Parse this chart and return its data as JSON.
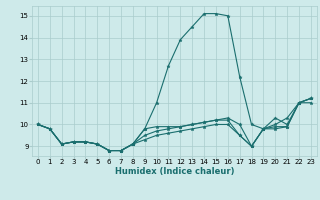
{
  "xlabel": "Humidex (Indice chaleur)",
  "bg_color": "#ceeaea",
  "grid_color": "#aacccc",
  "line_color": "#1a6e6e",
  "x_values": [
    0,
    1,
    2,
    3,
    4,
    5,
    6,
    7,
    8,
    9,
    10,
    11,
    12,
    13,
    14,
    15,
    16,
    17,
    18,
    19,
    20,
    21,
    22,
    23
  ],
  "series": [
    [
      10.0,
      9.8,
      9.1,
      9.2,
      9.2,
      9.1,
      8.8,
      8.8,
      9.1,
      9.8,
      11.0,
      12.7,
      13.9,
      14.5,
      15.1,
      15.1,
      15.0,
      12.2,
      10.0,
      9.8,
      10.3,
      10.0,
      11.0,
      11.2
    ],
    [
      10.0,
      9.8,
      9.1,
      9.2,
      9.2,
      9.1,
      8.8,
      8.8,
      9.1,
      9.8,
      9.9,
      9.9,
      9.9,
      10.0,
      10.1,
      10.2,
      10.3,
      10.0,
      9.0,
      9.8,
      10.0,
      10.3,
      11.0,
      11.2
    ],
    [
      10.0,
      9.8,
      9.1,
      9.2,
      9.2,
      9.1,
      8.8,
      8.8,
      9.1,
      9.5,
      9.7,
      9.8,
      9.9,
      10.0,
      10.1,
      10.2,
      10.2,
      9.5,
      9.0,
      9.8,
      9.9,
      9.9,
      11.0,
      11.2
    ],
    [
      10.0,
      9.8,
      9.1,
      9.2,
      9.2,
      9.1,
      8.8,
      8.8,
      9.1,
      9.3,
      9.5,
      9.6,
      9.7,
      9.8,
      9.9,
      10.0,
      10.0,
      9.5,
      9.0,
      9.8,
      9.8,
      9.9,
      11.0,
      11.0
    ]
  ],
  "ylim": [
    8.55,
    15.45
  ],
  "yticks": [
    9,
    10,
    11,
    12,
    13,
    14,
    15
  ],
  "xticks": [
    0,
    1,
    2,
    3,
    4,
    5,
    6,
    7,
    8,
    9,
    10,
    11,
    12,
    13,
    14,
    15,
    16,
    17,
    18,
    19,
    20,
    21,
    22,
    23
  ],
  "xlabel_fontsize": 6.0,
  "tick_fontsize": 5.0,
  "linewidth": 0.8,
  "markersize": 2.5
}
